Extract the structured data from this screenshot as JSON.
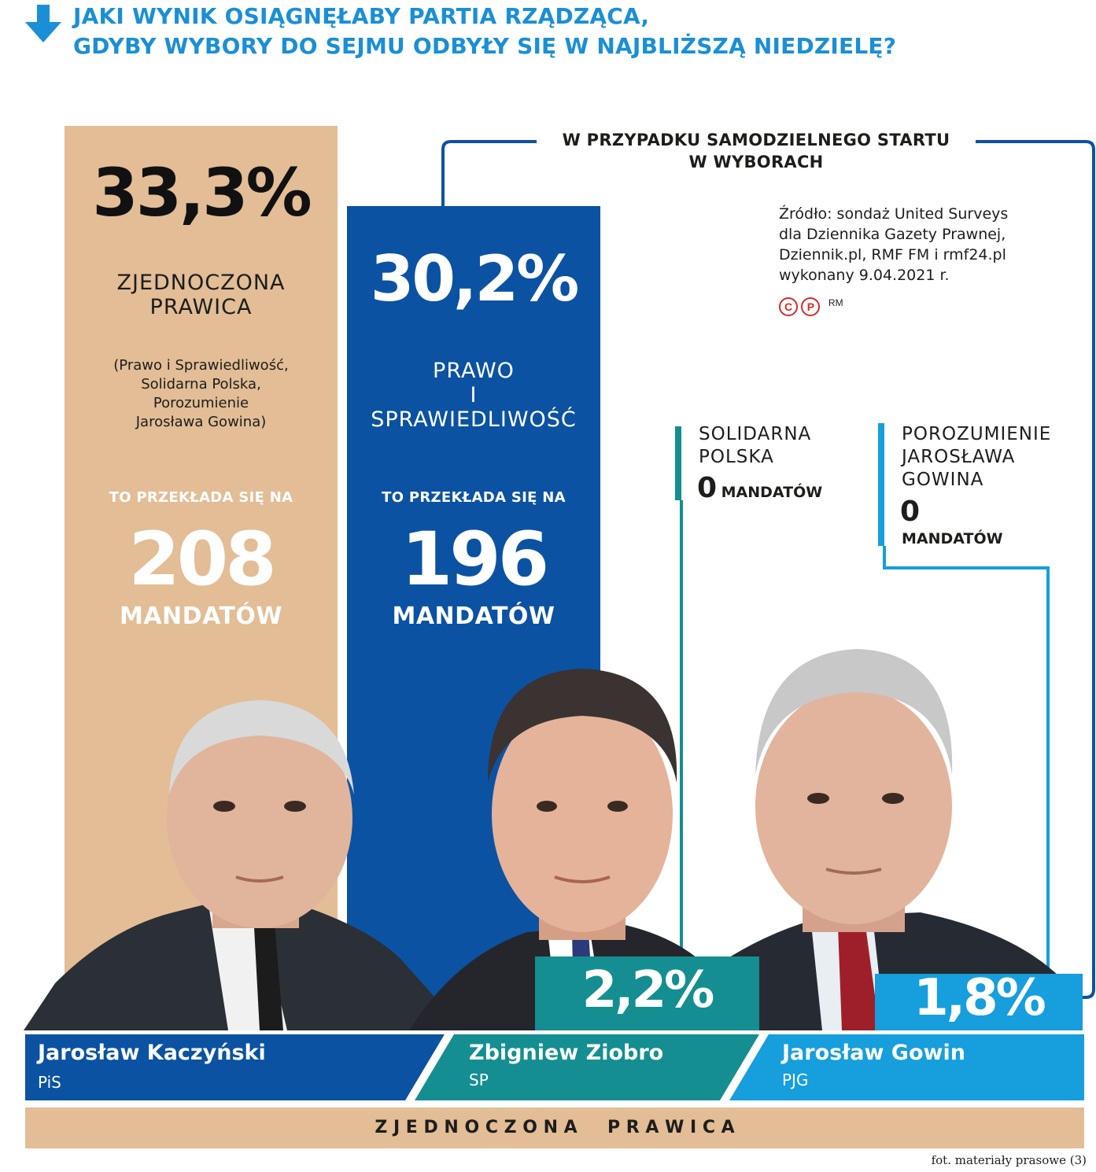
{
  "title": {
    "line1": "JAKI WYNIK OSIĄGNĘŁABY PARTIA RZĄDZĄCA,",
    "line2": "GDYBY WYBORY DO SEJMU ODBYŁY SIĘ W NAJBLIŻSZĄ NIEDZIELĘ?"
  },
  "bracket_label": {
    "line1": "W PRZYPADKU SAMODZIELNEGO STARTU",
    "line2": "W WYBORACH"
  },
  "source": {
    "line1": "Źródło: sondaż United Surveys",
    "line2": "dla Dziennika Gazety Prawnej,",
    "line3": "Dziennik.pl, RMF FM i rmf24.pl",
    "line4": "wykonany 9.04.2021 r.",
    "mark1": "C",
    "mark2": "P",
    "mark3": "RM"
  },
  "colors": {
    "tan": "#e2bd96",
    "blue_dark": "#0b52a3",
    "teal": "#148e91",
    "light_blue": "#169edd",
    "title_blue": "#1a8fd6"
  },
  "chart_data": {
    "type": "bar",
    "title": "JAKI WYNIK OSIĄGNĘŁABY PARTIA RZĄDZĄCA, GDYBY WYBORY DO SEJMU ODBYŁY SIĘ W NAJBLIŻSZĄ NIEDZIELĘ?",
    "categories": [
      "ZJEDNOCZONA PRAWICA",
      "PRAWO I SPRAWIEDLIWOŚĆ",
      "SOLIDARNA POLSKA",
      "POROZUMIENIE JAROSŁAWA GOWINA"
    ],
    "values": [
      33.3,
      30.2,
      2.2,
      1.8
    ],
    "value_labels": [
      "33,3%",
      "30,2%",
      "2,2%",
      "1,8%"
    ],
    "seats": [
      208,
      196,
      0,
      0
    ],
    "unit": "%"
  },
  "bars": {
    "zp": {
      "pct": "33,3%",
      "name1": "ZJEDNOCZONA",
      "name2": "PRAWICA",
      "sub1": "(Prawo i Sprawiedliwość,",
      "sub2": "Solidarna Polska,",
      "sub3": "Porozumienie",
      "sub4": "Jarosława Gowina)",
      "translates": "TO PRZEKŁADA SIĘ NA",
      "seats": "208",
      "seats_word": "MANDATÓW"
    },
    "pis": {
      "pct": "30,2%",
      "name1": "PRAWO",
      "name2": "I",
      "name3": "SPRAWIEDLIWOŚĆ",
      "translates": "TO PRZEKŁADA SIĘ NA",
      "seats": "196",
      "seats_word": "MANDATÓW"
    },
    "sp": {
      "pct": "2,2%",
      "name1": "SOLIDARNA",
      "name2": "POLSKA",
      "seats": "0",
      "seats_word": "MANDATÓW"
    },
    "pjg": {
      "pct": "1,8%",
      "name1": "POROZUMIENIE",
      "name2": "JAROSŁAWA",
      "name3": "GOWINA",
      "seats": "0",
      "seats_word": "MANDATÓW"
    }
  },
  "people": [
    {
      "name": "Jarosław Kaczyński",
      "party": "PiS"
    },
    {
      "name": "Zbigniew Ziobro",
      "party": "SP"
    },
    {
      "name": "Jarosław Gowin",
      "party": "PJG"
    }
  ],
  "footer": {
    "coalition": "Z J E D N O C Z O N A     P R A W I C A",
    "photo_credit": "fot. materiały prasowe (3)"
  }
}
